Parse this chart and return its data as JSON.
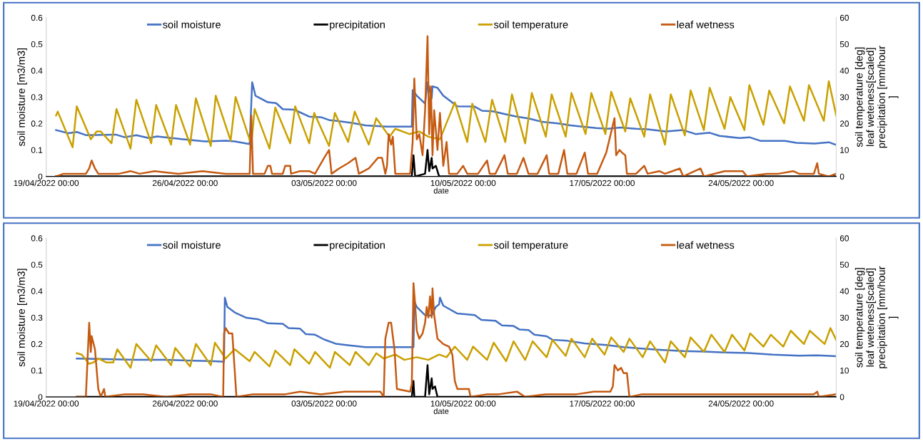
{
  "chart_data": [
    {
      "type": "line",
      "xlabel": "date",
      "ylabel": "soil moisture [m3/m3]",
      "y2label": "soil temperature [deg]\nleaf weteness[scaled]\nprecipitation [mm/hour\n]",
      "legend": "top",
      "xlim": [
        "2022-04-19",
        "2022-05-28T19:00"
      ],
      "xticks": [
        {
          "value": "2022-04-19",
          "label": "19/04/2022 00:00"
        },
        {
          "value": "2022-04-26",
          "label": "26/04/2022 00:00"
        },
        {
          "value": "2022-05-03",
          "label": "03/05/2022 00:00"
        },
        {
          "value": "2022-05-10",
          "label": "10/05/2022 00:00"
        },
        {
          "value": "2022-05-17",
          "label": "17/05/2022 00:00"
        },
        {
          "value": "2022-05-24",
          "label": "24/05/2022 00:00"
        }
      ],
      "ylim": [
        0,
        0.6
      ],
      "yticks": [
        0,
        0.1,
        0.2,
        0.3,
        0.4,
        0.5,
        0.6
      ],
      "y2lim": [
        0,
        60
      ],
      "y2ticks": [
        0,
        10,
        20,
        30,
        40,
        50,
        60
      ],
      "series": [
        {
          "name": "soil moisture",
          "color": "#4472c4",
          "x": [
            "2022-04-19T12:00",
            "2022-04-20T03:00",
            "2022-04-20T13:00",
            "2022-04-21T00:00",
            "2022-04-22T12:00",
            "2022-04-22T23:00",
            "2022-04-23T13:00",
            "2022-04-24T04:00",
            "2022-04-24T14:00",
            "2022-04-25T16:00",
            "2022-04-27T00:00",
            "2022-04-28T01:00",
            "2022-04-28T12:00",
            "2022-04-29T06:00",
            "2022-04-29T09:00",
            "2022-04-29T13:00",
            "2022-04-30T04:00",
            "2022-04-30T14:00",
            "2022-04-30T22:00",
            "2022-05-01T12:00",
            "2022-05-02T06:00",
            "2022-05-02T20:00",
            "2022-05-03T07:00",
            "2022-05-03T14:00",
            "2022-05-04T08:00",
            "2022-05-05T02:00",
            "2022-05-06T04:00",
            "2022-05-07T10:00",
            "2022-05-07T11:00",
            "2022-05-07T16:00",
            "2022-05-08T02:00",
            "2022-05-08T05:00",
            "2022-05-08T10:00",
            "2022-05-08T11:00",
            "2022-05-08T17:00",
            "2022-05-09T00:00",
            "2022-05-09T17:00",
            "2022-05-10T14:00",
            "2022-05-10T23:00",
            "2022-05-11T12:00",
            "2022-05-12T02:00",
            "2022-05-12T17:00",
            "2022-05-13T07:00",
            "2022-05-14T00:00",
            "2022-05-14T19:00",
            "2022-05-15T10:00",
            "2022-05-16T00:00",
            "2022-05-16T17:00",
            "2022-05-17T07:00",
            "2022-05-17T22:00",
            "2022-05-18T17:00",
            "2022-05-19T07:00",
            "2022-05-20T05:00",
            "2022-05-21T02:00",
            "2022-05-21T17:00",
            "2022-05-22T10:00",
            "2022-05-22T22:00",
            "2022-05-23T22:00",
            "2022-05-24T10:00",
            "2022-05-25T00:00",
            "2022-05-26T05:00",
            "2022-05-26T19:00",
            "2022-05-27T17:00",
            "2022-05-28T10:00",
            "2022-05-28T19:00"
          ],
          "values": [
            0.175,
            0.163,
            0.168,
            0.156,
            0.158,
            0.148,
            0.156,
            0.145,
            0.151,
            0.142,
            0.132,
            0.135,
            0.132,
            0.122,
            0.356,
            0.305,
            0.28,
            0.277,
            0.254,
            0.252,
            0.226,
            0.224,
            0.212,
            0.21,
            0.203,
            0.193,
            0.188,
            0.188,
            0.326,
            0.305,
            0.275,
            0.356,
            0.295,
            0.34,
            0.335,
            0.305,
            0.265,
            0.264,
            0.248,
            0.246,
            0.236,
            0.226,
            0.219,
            0.206,
            0.2,
            0.193,
            0.188,
            0.183,
            0.18,
            0.185,
            0.18,
            0.178,
            0.17,
            0.175,
            0.16,
            0.165,
            0.153,
            0.145,
            0.148,
            0.134,
            0.134,
            0.127,
            0.124,
            0.129,
            0.119
          ]
        },
        {
          "name": "precipitation",
          "color": "#000000",
          "axis": "y2",
          "x": [
            "2022-04-19T12:00",
            "2022-05-07T10:00",
            "2022-05-07T12:00",
            "2022-05-07T14:00",
            "2022-05-08T02:00",
            "2022-05-08T05:00",
            "2022-05-08T07:00",
            "2022-05-08T10:00",
            "2022-05-08T11:00",
            "2022-05-08T15:00",
            "2022-05-08T19:00",
            "2022-05-28T19:00"
          ],
          "values": [
            0,
            0,
            8,
            0,
            1,
            10,
            2,
            7,
            3,
            4,
            0,
            0
          ]
        },
        {
          "name": "soil temperature",
          "color": "#c9a000",
          "axis": "y2",
          "x": [
            "2022-04-19T12:00",
            "2022-04-19T14:00",
            "2022-04-20T08:00",
            "2022-04-20T13:00",
            "2022-04-21T06:00",
            "2022-04-21T13:00",
            "2022-04-21T18:00",
            "2022-04-22T07:00",
            "2022-04-22T13:00",
            "2022-04-23T06:00",
            "2022-04-23T13:00",
            "2022-04-24T07:00",
            "2022-04-24T13:00",
            "2022-04-25T07:00",
            "2022-04-25T13:00",
            "2022-04-26T06:00",
            "2022-04-26T13:00",
            "2022-04-27T07:00",
            "2022-04-27T13:00",
            "2022-04-28T07:00",
            "2022-04-28T13:00",
            "2022-04-29T08:00",
            "2022-04-29T12:00",
            "2022-04-30T06:00",
            "2022-04-30T13:00",
            "2022-05-01T07:00",
            "2022-05-01T13:00",
            "2022-05-02T06:00",
            "2022-05-02T12:00",
            "2022-05-03T06:00",
            "2022-05-03T13:00",
            "2022-05-04T05:00",
            "2022-05-04T13:00",
            "2022-05-05T06:00",
            "2022-05-05T15:00",
            "2022-05-06T07:00",
            "2022-05-06T14:00",
            "2022-05-07T07:00",
            "2022-05-07T19:00",
            "2022-05-08T06:00",
            "2022-05-08T20:00",
            "2022-05-09T14:00",
            "2022-05-10T05:00",
            "2022-05-10T11:00",
            "2022-05-11T03:00",
            "2022-05-11T11:00",
            "2022-05-12T03:00",
            "2022-05-12T11:00",
            "2022-05-13T03:00",
            "2022-05-13T11:00",
            "2022-05-14T04:00",
            "2022-05-14T11:00",
            "2022-05-15T04:00",
            "2022-05-15T11:00",
            "2022-05-16T04:00",
            "2022-05-16T11:00",
            "2022-05-17T04:00",
            "2022-05-17T11:00",
            "2022-05-18T04:00",
            "2022-05-18T10:00",
            "2022-05-19T03:00",
            "2022-05-19T10:00",
            "2022-05-20T04:00",
            "2022-05-20T11:00",
            "2022-05-21T04:00",
            "2022-05-21T11:00",
            "2022-05-22T03:00",
            "2022-05-22T10:00",
            "2022-05-23T04:00",
            "2022-05-23T11:00",
            "2022-05-24T04:00",
            "2022-05-24T10:00",
            "2022-05-25T03:00",
            "2022-05-25T10:00",
            "2022-05-26T04:00",
            "2022-05-26T11:00",
            "2022-05-27T04:00",
            "2022-05-27T10:00",
            "2022-05-28T04:00",
            "2022-05-28T10:00",
            "2022-05-28T19:00"
          ],
          "values": [
            23,
            24.5,
            11,
            26.5,
            14,
            17,
            17,
            12.5,
            25.5,
            10.5,
            29,
            12.5,
            27,
            12,
            27,
            12,
            29.5,
            11.5,
            30.5,
            13.5,
            30,
            12,
            25.5,
            10.5,
            26,
            12.5,
            26.5,
            12.5,
            24,
            11.5,
            24,
            13,
            24.5,
            12,
            22,
            15,
            18,
            16,
            17,
            15,
            14,
            28,
            13,
            27.5,
            13,
            29,
            13,
            31,
            12.5,
            31.5,
            15,
            31,
            15,
            31.5,
            16,
            31.5,
            16,
            32,
            17,
            29.5,
            15,
            31,
            12,
            31,
            15.5,
            32.5,
            17.5,
            33.5,
            18,
            30,
            17.5,
            34.5,
            19.5,
            32.5,
            20,
            34,
            21,
            34.5,
            21,
            36,
            23
          ]
        },
        {
          "name": "leaf wetness",
          "color": "#c55a11",
          "axis": "y2",
          "x": [
            "2022-04-19T12:00",
            "2022-04-19T21:00",
            "2022-04-20T13:00",
            "2022-04-21T00:00",
            "2022-04-21T04:00",
            "2022-04-21T07:00",
            "2022-04-21T11:00",
            "2022-04-21T15:00",
            "2022-04-22T16:00",
            "2022-04-23T06:00",
            "2022-04-23T17:00",
            "2022-04-24T11:00",
            "2022-04-25T16:00",
            "2022-04-26T21:00",
            "2022-04-28T01:00",
            "2022-04-29T06:00",
            "2022-04-29T08:00",
            "2022-04-29T10:00",
            "2022-04-30T00:00",
            "2022-04-30T04:00",
            "2022-04-30T07:00",
            "2022-04-30T09:00",
            "2022-04-30T22:00",
            "2022-05-01T01:00",
            "2022-05-01T07:00",
            "2022-05-01T08:00",
            "2022-05-01T19:00",
            "2022-05-02T06:00",
            "2022-05-02T13:00",
            "2022-05-03T00:00",
            "2022-05-03T06:00",
            "2022-05-03T09:00",
            "2022-05-03T18:00",
            "2022-05-04T05:00",
            "2022-05-04T14:00",
            "2022-05-04T18:00",
            "2022-05-05T06:00",
            "2022-05-05T17:00",
            "2022-05-05T22:00",
            "2022-05-06T02:00",
            "2022-05-06T04:00",
            "2022-05-06T06:00",
            "2022-05-06T09:00",
            "2022-05-06T11:00",
            "2022-05-06T14:00",
            "2022-05-07T08:00",
            "2022-05-07T11:00",
            "2022-05-07T13:00",
            "2022-05-07T16:00",
            "2022-05-07T19:00",
            "2022-05-07T23:00",
            "2022-05-08T02:00",
            "2022-05-08T05:00",
            "2022-05-08T07:00",
            "2022-05-08T09:00",
            "2022-05-08T11:00",
            "2022-05-08T13:00",
            "2022-05-08T17:00",
            "2022-05-08T20:00",
            "2022-05-09T00:00",
            "2022-05-09T04:00",
            "2022-05-09T07:00",
            "2022-05-09T17:00",
            "2022-05-10T00:00",
            "2022-05-10T05:00",
            "2022-05-10T18:00",
            "2022-05-11T05:00",
            "2022-05-11T08:00",
            "2022-05-11T15:00",
            "2022-05-12T02:00",
            "2022-05-12T06:00",
            "2022-05-12T17:00",
            "2022-05-13T01:00",
            "2022-05-13T07:00",
            "2022-05-13T18:00",
            "2022-05-14T05:00",
            "2022-05-14T08:00",
            "2022-05-14T19:00",
            "2022-05-15T02:00",
            "2022-05-15T06:00",
            "2022-05-15T17:00",
            "2022-05-16T03:00",
            "2022-05-16T07:00",
            "2022-05-16T18:00",
            "2022-05-17T05:00",
            "2022-05-17T15:00",
            "2022-05-17T17:00",
            "2022-05-17T21:00",
            "2022-05-18T00:00",
            "2022-05-18T04:00",
            "2022-05-18T06:00",
            "2022-05-18T17:00",
            "2022-05-19T03:00",
            "2022-05-19T07:00",
            "2022-05-19T21:00",
            "2022-05-20T04:00",
            "2022-05-20T22:00",
            "2022-05-21T02:00",
            "2022-05-21T23:00",
            "2022-05-22T03:00",
            "2022-05-23T04:00",
            "2022-05-24T02:00",
            "2022-05-24T07:00",
            "2022-05-25T07:00",
            "2022-05-25T21:00",
            "2022-05-26T15:00",
            "2022-05-26T22:00",
            "2022-05-27T16:00",
            "2022-05-27T20:00",
            "2022-05-27T22:00",
            "2022-05-28T10:00",
            "2022-05-28T19:00"
          ],
          "values": [
            0,
            1,
            1,
            1,
            3,
            6,
            3,
            1,
            1,
            2,
            1,
            2,
            1,
            2,
            1,
            1,
            23,
            1,
            1,
            4,
            4,
            1,
            1,
            4,
            4,
            1,
            2,
            2,
            1,
            7,
            10,
            1,
            3,
            5,
            7,
            1,
            3,
            7,
            7,
            1,
            4,
            16,
            12,
            15,
            1,
            1,
            13,
            37,
            14,
            16,
            8,
            25,
            53,
            16,
            34,
            8,
            25,
            10,
            24,
            4,
            13,
            1,
            1,
            4,
            1,
            1,
            6,
            1,
            1,
            8,
            1,
            1,
            7,
            1,
            1,
            8,
            1,
            1,
            10,
            1,
            1,
            9,
            1,
            1,
            9,
            22,
            8,
            10,
            9,
            8,
            1,
            1,
            4,
            1,
            2,
            1,
            3,
            0,
            3,
            0,
            2,
            2,
            0,
            1,
            1,
            2,
            1,
            1,
            5,
            1,
            0,
            1
          ]
        }
      ]
    },
    {
      "type": "line",
      "xlabel": "date",
      "ylabel": "soil moisture [m3/m3]",
      "y2label": "soil temperature [deg]\nleaf weteness[scaled]\nprecipitation [mm/hour\n]",
      "legend": "top",
      "xlim": [
        "2022-04-19",
        "2022-05-28T19:00"
      ],
      "xticks": [
        {
          "value": "2022-04-19",
          "label": "19/04/2022 00:00"
        },
        {
          "value": "2022-04-26",
          "label": "26/04/2022 00:00"
        },
        {
          "value": "2022-05-03",
          "label": "03/05/2022 00:00"
        },
        {
          "value": "2022-05-10",
          "label": "10/05/2022 00:00"
        },
        {
          "value": "2022-05-17",
          "label": "17/05/2022 00:00"
        },
        {
          "value": "2022-05-24",
          "label": "24/05/2022 00:00"
        }
      ],
      "ylim": [
        0,
        0.6
      ],
      "yticks": [
        0,
        0.1,
        0.2,
        0.3,
        0.4,
        0.5,
        0.6
      ],
      "y2lim": [
        0,
        60
      ],
      "y2ticks": [
        0,
        10,
        20,
        30,
        40,
        50,
        60
      ],
      "series": [
        {
          "name": "soil moisture",
          "color": "#4472c4",
          "x": [
            "2022-04-20T13:00",
            "2022-04-21T22:00",
            "2022-04-23T10:00",
            "2022-04-24T22:00",
            "2022-04-26T10:00",
            "2022-04-27T11:00",
            "2022-04-27T23:00",
            "2022-04-28T00:00",
            "2022-04-28T03:00",
            "2022-04-28T12:00",
            "2022-04-29T02:00",
            "2022-04-29T17:00",
            "2022-04-30T04:00",
            "2022-04-30T22:00",
            "2022-05-01T05:00",
            "2022-05-01T19:00",
            "2022-05-02T02:00",
            "2022-05-02T13:00",
            "2022-05-03T00:00",
            "2022-05-03T14:00",
            "2022-05-04T08:00",
            "2022-05-05T02:00",
            "2022-05-07T12:00",
            "2022-05-07T13:00",
            "2022-05-07T16:00",
            "2022-05-08T02:00",
            "2022-05-08T10:00",
            "2022-05-08T15:00",
            "2022-05-08T19:00",
            "2022-05-08T20:00",
            "2022-05-09T00:00",
            "2022-05-09T17:00",
            "2022-05-10T14:00",
            "2022-05-10T22:00",
            "2022-05-11T15:00",
            "2022-05-11T23:00",
            "2022-05-12T13:00",
            "2022-05-12T20:00",
            "2022-05-13T07:00",
            "2022-05-13T14:00",
            "2022-05-14T05:00",
            "2022-05-14T12:00",
            "2022-05-15T06:00",
            "2022-05-16T03:00",
            "2022-05-17T05:00",
            "2022-05-18T02:00",
            "2022-05-19T00:00",
            "2022-05-19T21:00",
            "2022-05-21T02:00",
            "2022-05-22T03:00",
            "2022-05-23T04:00",
            "2022-05-24T09:00",
            "2022-05-25T14:00",
            "2022-05-26T22:00",
            "2022-05-27T20:00",
            "2022-05-28T19:00"
          ],
          "values": [
            0.145,
            0.143,
            0.14,
            0.14,
            0.137,
            0.135,
            0.133,
            0.375,
            0.34,
            0.319,
            0.299,
            0.293,
            0.278,
            0.276,
            0.26,
            0.258,
            0.237,
            0.235,
            0.217,
            0.201,
            0.194,
            0.188,
            0.188,
            0.36,
            0.34,
            0.309,
            0.307,
            0.34,
            0.35,
            0.375,
            0.345,
            0.315,
            0.309,
            0.291,
            0.288,
            0.27,
            0.268,
            0.255,
            0.253,
            0.235,
            0.229,
            0.216,
            0.212,
            0.202,
            0.196,
            0.188,
            0.183,
            0.178,
            0.173,
            0.171,
            0.168,
            0.166,
            0.16,
            0.156,
            0.157,
            0.154
          ]
        },
        {
          "name": "precipitation",
          "color": "#000000",
          "axis": "y2",
          "x": [
            "2022-04-20T13:00",
            "2022-05-07T10:00",
            "2022-05-07T12:00",
            "2022-05-07T13:00",
            "2022-05-08T02:00",
            "2022-05-08T05:00",
            "2022-05-08T07:00",
            "2022-05-08T10:00",
            "2022-05-08T11:00",
            "2022-05-08T14:00",
            "2022-05-08T17:00",
            "2022-05-28T19:00"
          ],
          "values": [
            0,
            0,
            6,
            0,
            0,
            12,
            1,
            7,
            3,
            4,
            0,
            0
          ]
        },
        {
          "name": "soil temperature",
          "color": "#c9a000",
          "axis": "y2",
          "x": [
            "2022-04-20T13:00",
            "2022-04-20T19:00",
            "2022-04-21T04:00",
            "2022-04-21T09:00",
            "2022-04-21T15:00",
            "2022-04-22T01:00",
            "2022-04-22T09:00",
            "2022-04-22T14:00",
            "2022-04-23T06:00",
            "2022-04-23T13:00",
            "2022-04-24T07:00",
            "2022-04-24T13:00",
            "2022-04-25T07:00",
            "2022-04-25T12:00",
            "2022-04-26T06:00",
            "2022-04-26T13:00",
            "2022-04-27T07:00",
            "2022-04-27T12:00",
            "2022-04-28T01:00",
            "2022-04-28T12:00",
            "2022-04-29T06:00",
            "2022-04-29T12:00",
            "2022-04-30T06:00",
            "2022-04-30T13:00",
            "2022-05-01T07:00",
            "2022-05-01T12:00",
            "2022-05-02T06:00",
            "2022-05-02T13:00",
            "2022-05-03T07:00",
            "2022-05-03T13:00",
            "2022-05-04T07:00",
            "2022-05-04T14:00",
            "2022-05-05T06:00",
            "2022-05-05T15:00",
            "2022-05-06T00:00",
            "2022-05-06T14:00",
            "2022-05-07T01:00",
            "2022-05-07T16:00",
            "2022-05-08T06:00",
            "2022-05-08T19:00",
            "2022-05-09T04:00",
            "2022-05-09T14:00",
            "2022-05-09T17:00",
            "2022-05-10T05:00",
            "2022-05-10T12:00",
            "2022-05-11T05:00",
            "2022-05-11T13:00",
            "2022-05-12T04:00",
            "2022-05-12T13:00",
            "2022-05-13T03:00",
            "2022-05-13T12:00",
            "2022-05-14T05:00",
            "2022-05-14T12:00",
            "2022-05-15T04:00",
            "2022-05-15T11:00",
            "2022-05-16T03:00",
            "2022-05-16T12:00",
            "2022-05-17T03:00",
            "2022-05-17T11:00",
            "2022-05-18T02:00",
            "2022-05-18T09:00",
            "2022-05-19T01:00",
            "2022-05-19T10:00",
            "2022-05-20T04:00",
            "2022-05-20T11:00",
            "2022-05-21T04:00",
            "2022-05-21T11:00",
            "2022-05-22T03:00",
            "2022-05-22T12:00",
            "2022-05-23T04:00",
            "2022-05-23T13:00",
            "2022-05-24T04:00",
            "2022-05-24T11:00",
            "2022-05-25T03:00",
            "2022-05-25T12:00",
            "2022-05-26T03:00",
            "2022-05-26T12:00",
            "2022-05-27T04:00",
            "2022-05-27T11:00",
            "2022-05-28T05:00",
            "2022-05-28T12:00",
            "2022-05-28T19:00"
          ],
          "values": [
            16.5,
            16,
            12.5,
            13,
            14.5,
            13,
            13,
            18,
            11,
            20,
            13.5,
            19.5,
            12,
            18.5,
            11.5,
            20,
            12,
            20.5,
            14.5,
            18,
            13.5,
            17,
            11.5,
            17.5,
            12,
            18,
            12.5,
            17,
            11,
            17,
            12,
            17,
            12,
            16.5,
            14.5,
            16,
            14,
            15,
            14,
            16,
            15,
            19,
            18,
            14,
            19,
            14,
            20.5,
            13.5,
            21,
            14,
            21,
            15,
            21.5,
            15.5,
            22,
            15,
            22,
            16,
            22.5,
            17,
            22,
            15,
            21,
            13,
            21,
            15,
            22.5,
            17,
            23.5,
            17,
            23.5,
            17.5,
            24,
            19,
            23.5,
            19,
            25,
            20,
            25,
            20,
            26,
            21.5
          ]
        },
        {
          "name": "leaf wetness",
          "color": "#c55a11",
          "axis": "y2",
          "x": [
            "2022-04-20T13:00",
            "2022-04-21T00:00",
            "2022-04-21T02:00",
            "2022-04-21T04:00",
            "2022-04-21T06:00",
            "2022-04-21T07:00",
            "2022-04-21T11:00",
            "2022-04-21T15:00",
            "2022-04-21T18:00",
            "2022-04-21T22:00",
            "2022-04-21T23:30",
            "2022-04-22T23:00",
            "2022-04-23T21:00",
            "2022-04-25T01:00",
            "2022-04-26T06:00",
            "2022-04-27T07:00",
            "2022-04-27T22:00",
            "2022-04-27T23:00",
            "2022-04-28T01:00",
            "2022-04-28T05:00",
            "2022-04-28T09:00",
            "2022-04-28T14:00",
            "2022-04-29T10:00",
            "2022-04-30T11:00",
            "2022-05-01T01:00",
            "2022-05-01T19:00",
            "2022-05-02T20:00",
            "2022-05-04T01:00",
            "2022-05-04T23:00",
            "2022-05-05T20:00",
            "2022-05-06T00:00",
            "2022-05-06T02:00",
            "2022-05-06T06:00",
            "2022-05-06T09:00",
            "2022-05-06T13:00",
            "2022-05-06T16:00",
            "2022-05-07T08:00",
            "2022-05-07T10:00",
            "2022-05-07T12:00",
            "2022-05-07T14:00",
            "2022-05-07T16:00",
            "2022-05-07T19:00",
            "2022-05-07T23:00",
            "2022-05-08T02:00",
            "2022-05-08T04:00",
            "2022-05-08T06:00",
            "2022-05-08T08:00",
            "2022-05-08T10:00",
            "2022-05-08T11:00",
            "2022-05-08T13:00",
            "2022-05-08T17:00",
            "2022-05-09T00:00",
            "2022-05-09T07:00",
            "2022-05-09T11:00",
            "2022-05-09T14:00",
            "2022-05-09T17:00",
            "2022-05-10T07:00",
            "2022-05-10T09:00",
            "2022-05-11T05:00",
            "2022-05-11T19:00",
            "2022-05-12T17:00",
            "2022-05-13T03:00",
            "2022-05-14T05:00",
            "2022-05-15T17:00",
            "2022-05-16T14:00",
            "2022-05-17T10:00",
            "2022-05-17T13:00",
            "2022-05-17T15:00",
            "2022-05-17T19:00",
            "2022-05-17T23:00",
            "2022-05-18T02:00",
            "2022-05-18T06:00",
            "2022-05-18T09:00",
            "2022-05-19T00:00",
            "2022-05-20T04:00",
            "2022-05-21T16:00",
            "2022-05-23T04:00",
            "2022-05-24T16:00",
            "2022-05-26T04:00",
            "2022-05-27T16:00",
            "2022-05-27T20:00",
            "2022-05-27T22:00",
            "2022-05-28T19:00"
          ],
          "values": [
            0,
            0,
            14,
            28,
            17,
            23,
            18,
            3,
            0,
            3,
            0,
            1,
            1,
            0,
            1,
            1,
            0,
            24,
            26,
            24,
            24,
            0,
            1,
            1,
            1,
            2,
            1,
            2,
            2,
            2,
            0,
            22,
            28,
            28,
            18,
            3,
            2,
            5,
            43,
            35,
            25,
            22,
            24,
            28,
            34,
            30,
            38,
            30,
            41,
            31,
            22,
            20,
            19,
            16,
            6,
            3,
            3,
            0,
            1,
            1,
            2,
            0,
            1,
            1,
            2,
            2,
            4,
            12,
            10,
            11,
            9,
            9,
            0,
            1,
            1,
            1,
            1,
            1,
            1,
            1,
            2,
            0,
            1
          ]
        }
      ]
    }
  ]
}
